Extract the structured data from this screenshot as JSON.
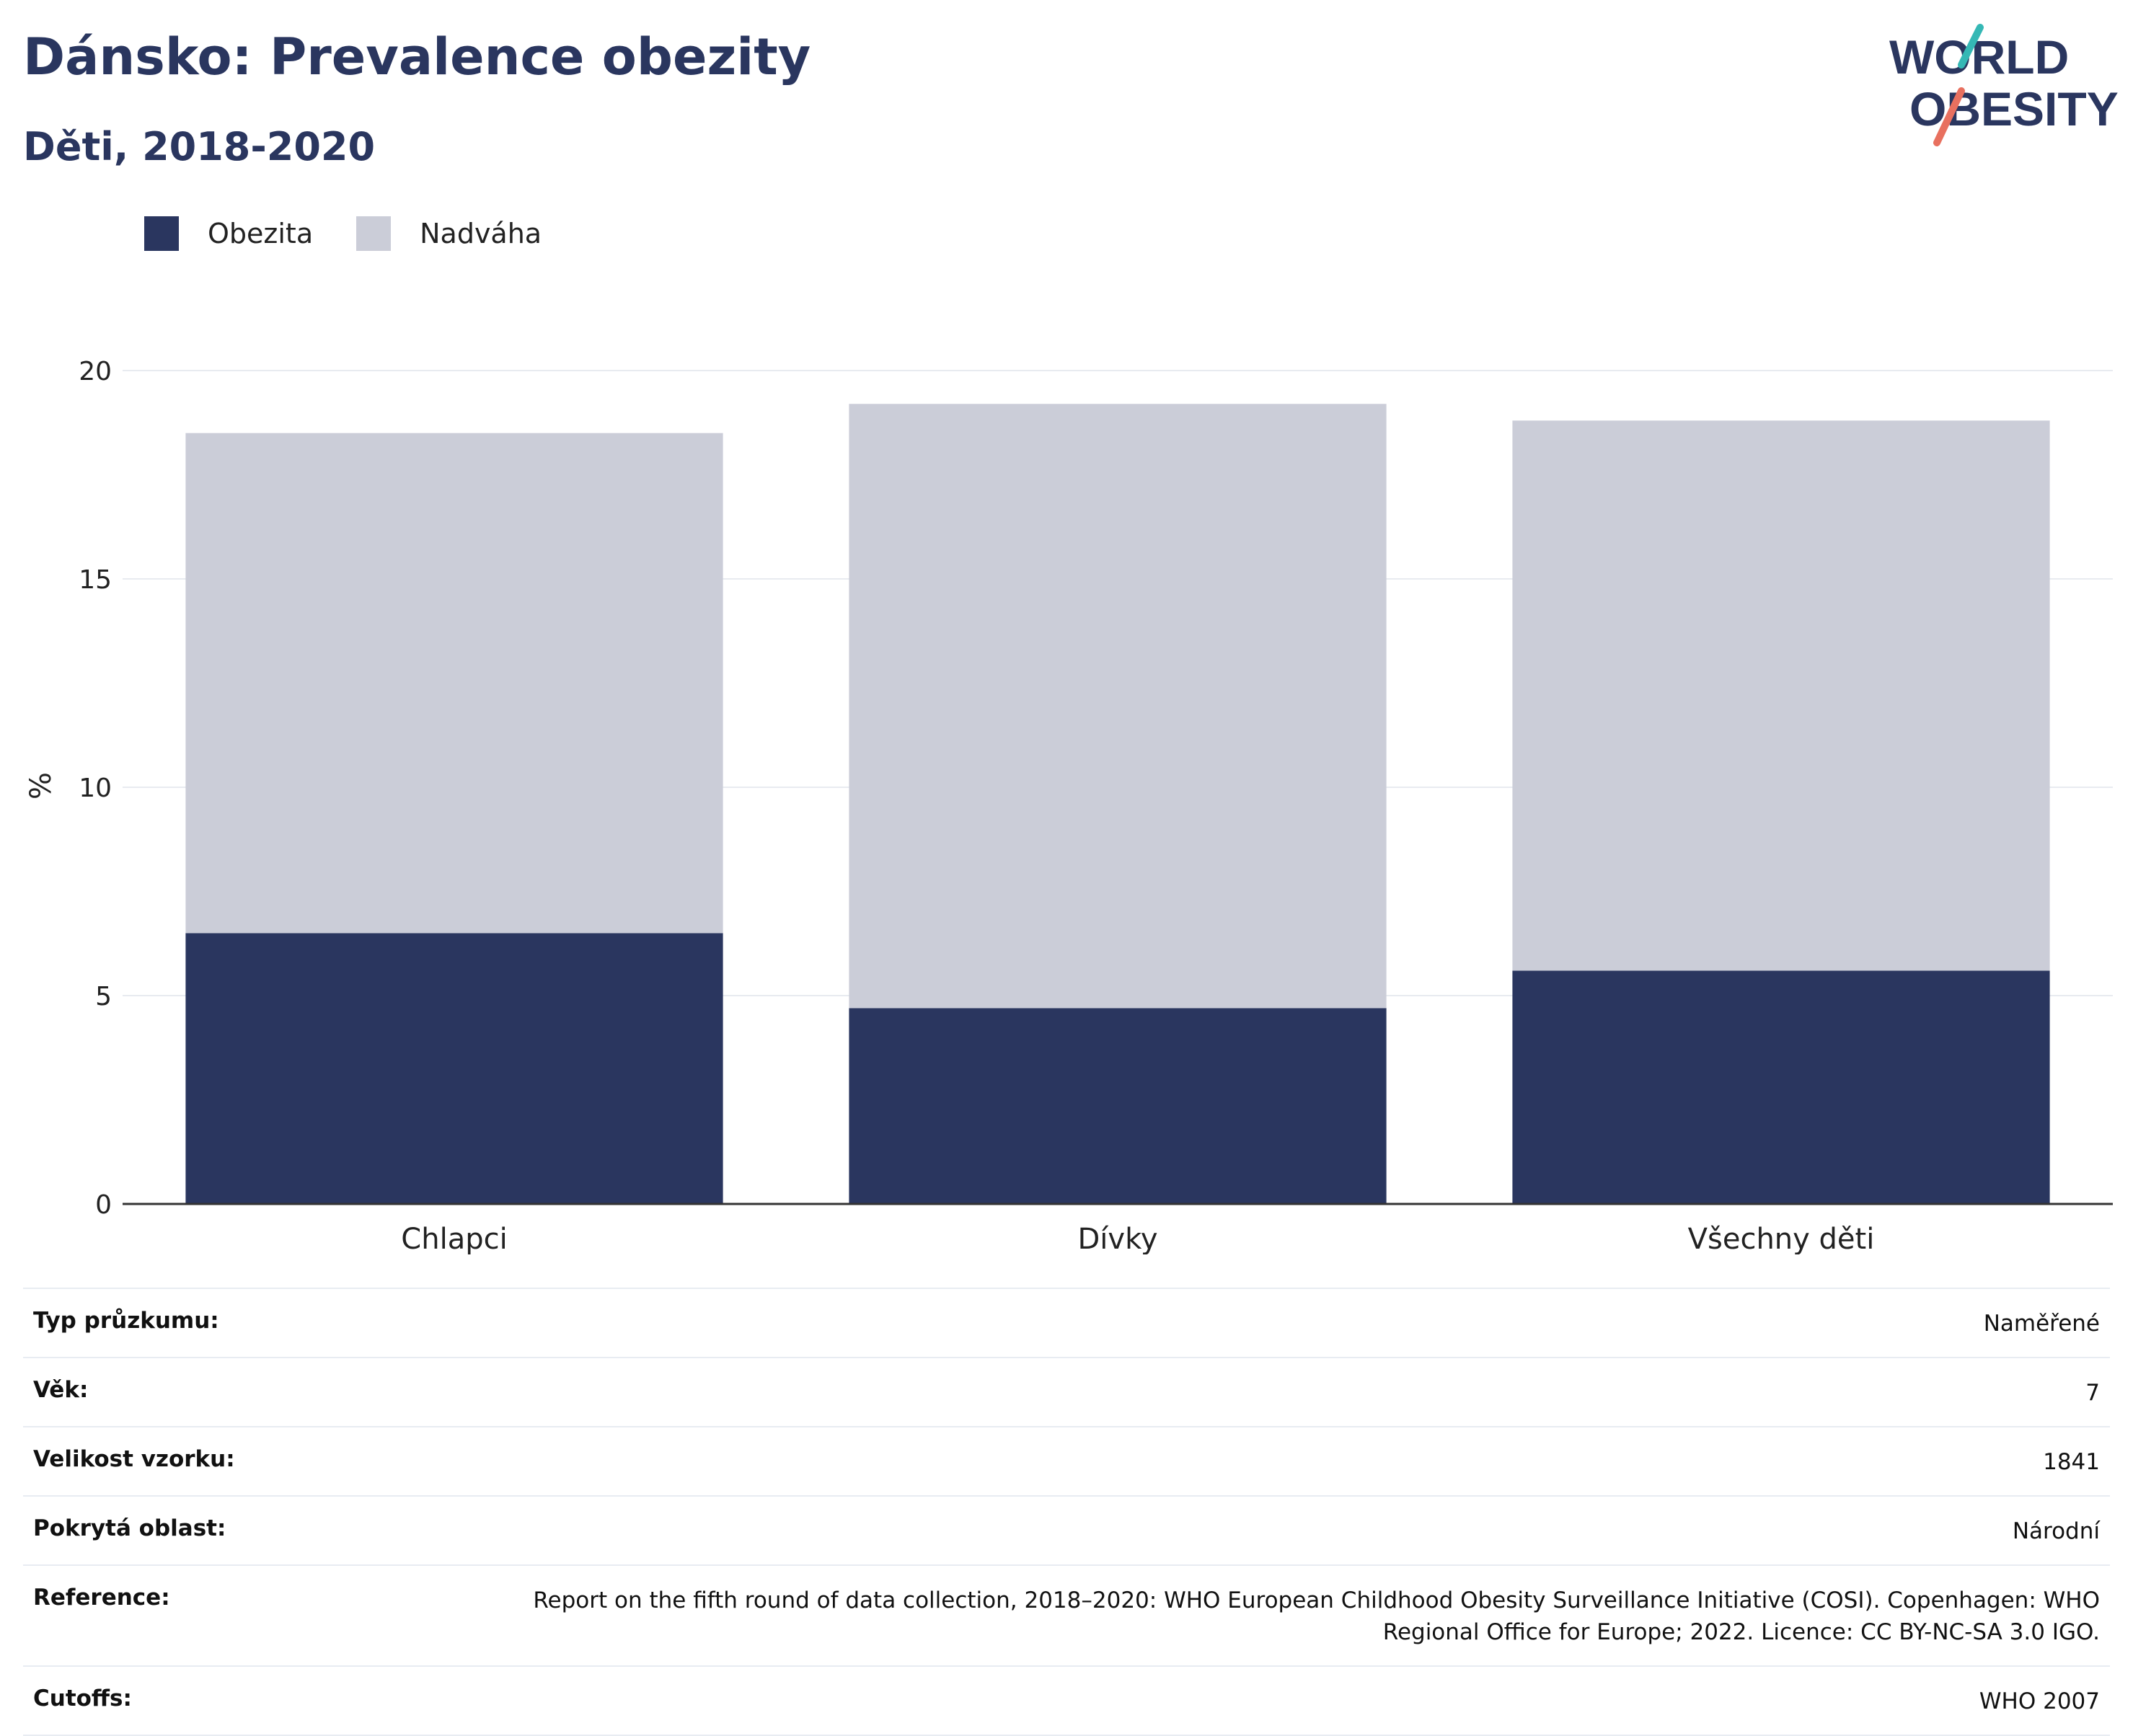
{
  "header": {
    "title": "Dánsko: Prevalence obezity",
    "subtitle": "Děti, 2018-2020"
  },
  "logo": {
    "line1": "WORLD",
    "line2": "OBESITY",
    "text_color": "#2a365f",
    "accent_teal": "#35b8b5",
    "accent_coral": "#e8705f"
  },
  "legend": {
    "items": [
      {
        "label": "Obezita",
        "color": "#2a365f"
      },
      {
        "label": "Nadváha",
        "color": "#cbcdd8"
      }
    ]
  },
  "chart_data": {
    "type": "bar",
    "stacked": true,
    "categories": [
      "Chlapci",
      "Dívky",
      "Všechny děti"
    ],
    "series": [
      {
        "name": "Obezita",
        "values": [
          6.5,
          4.7,
          5.6
        ],
        "color": "#2a365f"
      },
      {
        "name": "Nadváha",
        "values": [
          12.0,
          14.5,
          13.2
        ],
        "color": "#cbcdd8"
      }
    ],
    "ylabel": "%",
    "ylim": [
      0,
      20
    ],
    "yticks": [
      "0",
      "5",
      "10",
      "15",
      "20"
    ],
    "grid": true,
    "legend_position": "top-left"
  },
  "info": {
    "rows": [
      {
        "key": "Typ průzkumu:",
        "value": "Naměřené"
      },
      {
        "key": "Věk:",
        "value": "7"
      },
      {
        "key": "Velikost vzorku:",
        "value": "1841"
      },
      {
        "key": "Pokrytá oblast:",
        "value": "Národní"
      },
      {
        "key": "Reference:",
        "value": "Report on the fifth round of data collection, 2018–2020: WHO European Childhood Obesity Surveillance Initiative (COSI). Copenhagen: WHO Regional Office for Europe; 2022. Licence: CC BY-NC-SA 3.0 IGO."
      },
      {
        "key": "Cutoffs:",
        "value": "WHO 2007"
      }
    ]
  }
}
